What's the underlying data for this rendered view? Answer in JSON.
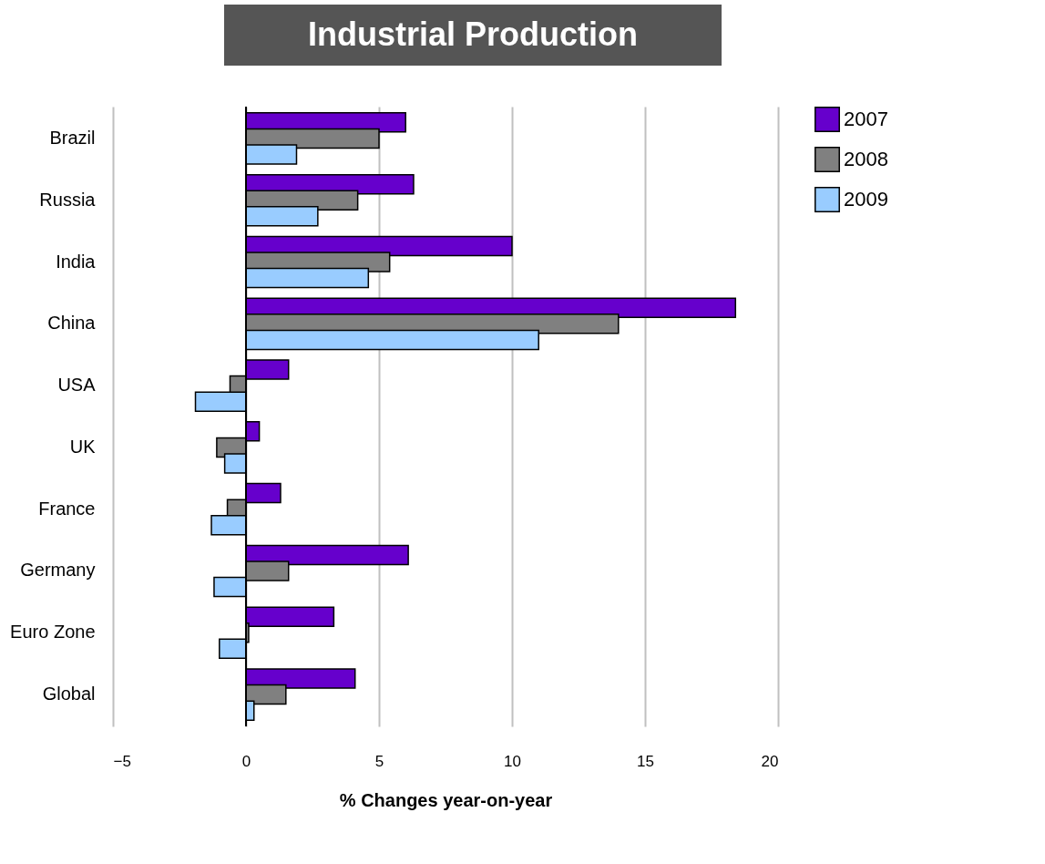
{
  "chart_data": {
    "type": "bar",
    "orientation": "horizontal",
    "title": "Industrial Production",
    "xlabel": "% Changes year-on-year",
    "categories": [
      "Brazil",
      "Russia",
      "India",
      "China",
      "USA",
      "UK",
      "France",
      "Germany",
      "Euro Zone",
      "Global"
    ],
    "series": [
      {
        "name": "2007",
        "color": "#6600cc",
        "values": [
          6.0,
          6.3,
          10.0,
          18.4,
          1.6,
          0.5,
          1.3,
          6.1,
          3.3,
          4.1
        ]
      },
      {
        "name": "2008",
        "color": "#808080",
        "values": [
          5.0,
          4.2,
          5.4,
          14.0,
          -0.6,
          -1.1,
          -0.7,
          1.6,
          0.1,
          1.5
        ]
      },
      {
        "name": "2009",
        "color": "#99ccff",
        "values": [
          1.9,
          2.7,
          4.6,
          11.0,
          -1.9,
          -0.8,
          -1.3,
          -1.2,
          -1.0,
          0.3
        ]
      }
    ],
    "xlim": [
      -5,
      20
    ],
    "xticks": [
      -5,
      0,
      5,
      10,
      15,
      20
    ],
    "grid": "x",
    "legend": "right"
  }
}
